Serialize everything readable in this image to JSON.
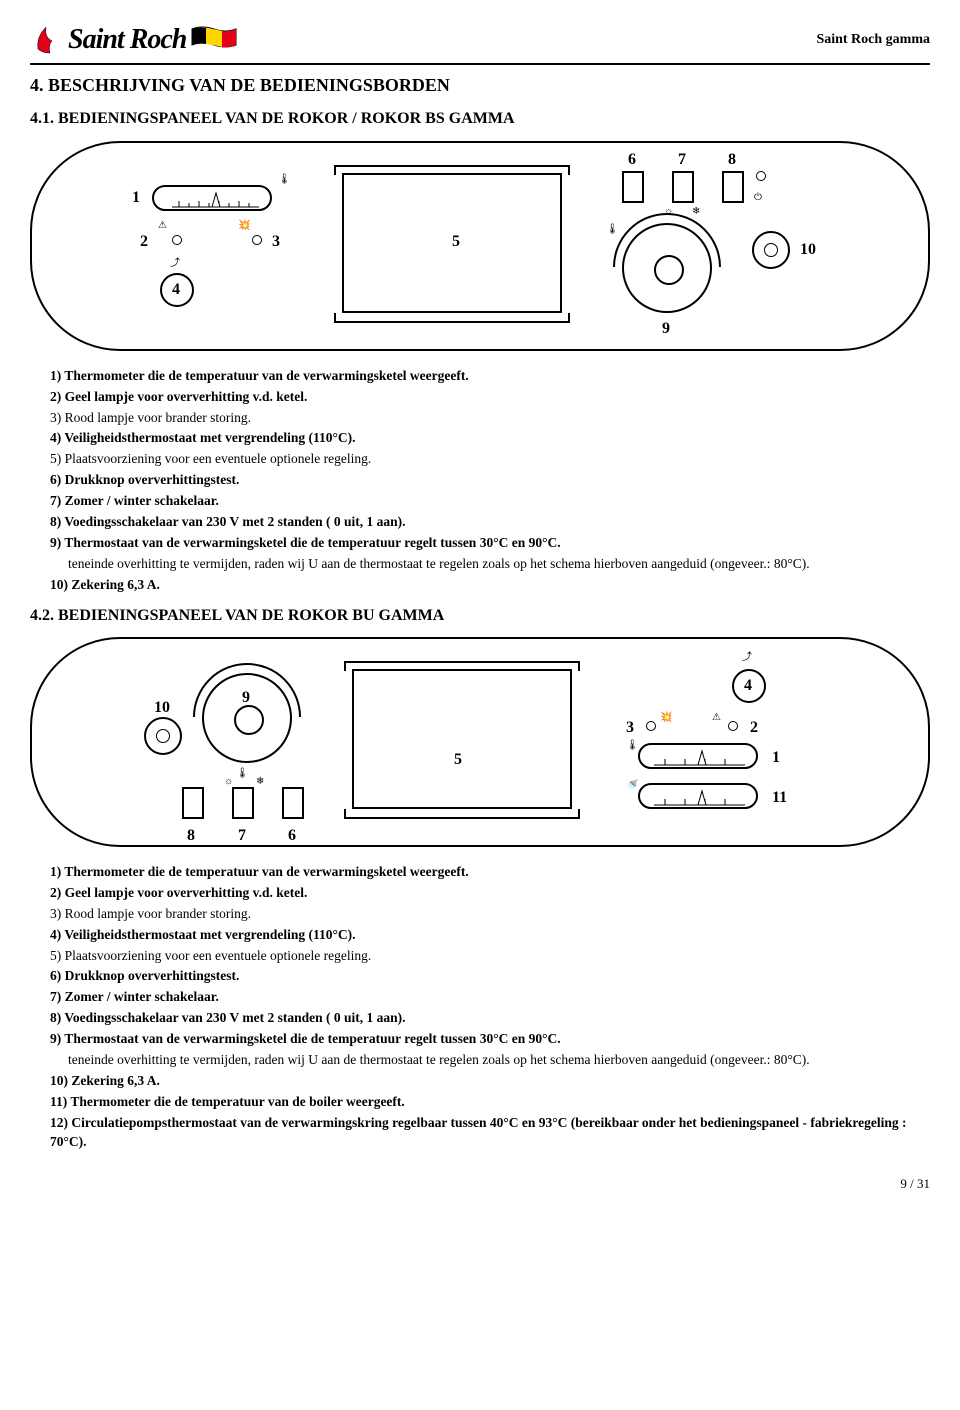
{
  "header": {
    "brand_name": "Saint Roch",
    "right_label": "Saint Roch gamma"
  },
  "section4": {
    "title": "4.  BESCHRIJVING VAN DE BEDIENINGSBORDEN"
  },
  "section41": {
    "title": "4.1.  BEDIENINGSPANEEL VAN DE ROKOR / ROKOR BS GAMMA",
    "labels": {
      "n1": "1",
      "n2": "2",
      "n3": "3",
      "n4": "4",
      "n5": "5",
      "n6": "6",
      "n7": "7",
      "n8": "8",
      "n9": "9",
      "n10": "10"
    },
    "items": [
      {
        "bold": true,
        "text": "1) Thermometer die de temperatuur van de verwarmingsketel weergeeft."
      },
      {
        "bold": true,
        "text": "2) Geel lampje voor oververhitting v.d. ketel."
      },
      {
        "bold": false,
        "text": "3) Rood lampje voor brander storing."
      },
      {
        "bold": true,
        "text": "4) Veiligheidsthermostaat met vergrendeling (110°C)."
      },
      {
        "bold": false,
        "text": "5) Plaatsvoorziening voor een eventuele optionele regeling."
      },
      {
        "bold": true,
        "text": "6) Drukknop oververhittingstest."
      },
      {
        "bold": true,
        "text": "7) Zomer / winter schakelaar."
      },
      {
        "bold": true,
        "text": "8) Voedingsschakelaar van 230 V met 2 standen ( 0 uit, 1 aan)."
      },
      {
        "bold": true,
        "text": "9) Thermostaat van de verwarmingsketel die de temperatuur regelt tussen 30°C en 90°C."
      },
      {
        "bold": false,
        "text": "teneinde overhitting te vermijden, raden wij U aan de thermostaat te regelen zoals op het schema hierboven aangeduid (ongeveer.: 80°C)."
      },
      {
        "bold": true,
        "text": "10) Zekering 6,3 A."
      }
    ]
  },
  "section42": {
    "title": "4.2.  BEDIENINGSPANEEL VAN DE ROKOR  BU GAMMA",
    "labels": {
      "n1": "1",
      "n2": "2",
      "n3": "3",
      "n4": "4",
      "n5": "5",
      "n6": "6",
      "n7": "7",
      "n8": "8",
      "n9": "9",
      "n10": "10",
      "n11": "11"
    },
    "items": [
      {
        "bold": true,
        "text": "1) Thermometer die de temperatuur van de verwarmingsketel weergeeft."
      },
      {
        "bold": true,
        "text": "2) Geel lampje voor oververhitting v.d. ketel."
      },
      {
        "bold": false,
        "text": "3) Rood lampje voor brander storing."
      },
      {
        "bold": true,
        "text": "4) Veiligheidsthermostaat met vergrendeling (110°C)."
      },
      {
        "bold": false,
        "text": "5) Plaatsvoorziening voor een eventuele optionele regeling."
      },
      {
        "bold": true,
        "text": "6) Drukknop oververhittingstest."
      },
      {
        "bold": true,
        "text": "7) Zomer / winter schakelaar."
      },
      {
        "bold": true,
        "text": "8) Voedingsschakelaar van 230 V met 2 standen ( 0 uit, 1 aan)."
      },
      {
        "bold": true,
        "text": "9) Thermostaat van de verwarmingsketel die de temperatuur regelt tussen 30°C en 90°C."
      },
      {
        "bold": false,
        "text": "teneinde overhitting te vermijden, raden wij U aan de thermostaat te regelen zoals op het schema hierboven aangeduid (ongeveer.: 80°C)."
      },
      {
        "bold": true,
        "text": "10) Zekering 6,3 A."
      },
      {
        "bold": true,
        "text": "11) Thermometer die de temperatuur van de boiler weergeeft."
      },
      {
        "bold": true,
        "text": "12) Circulatiepompsthermostaat van de verwarmingskring regelbaar tussen 40°C en 93°C (bereikbaar onder het bedieningspaneel - fabriekregeling : 70°C)."
      }
    ]
  },
  "footer": {
    "page": "9 / 31"
  }
}
